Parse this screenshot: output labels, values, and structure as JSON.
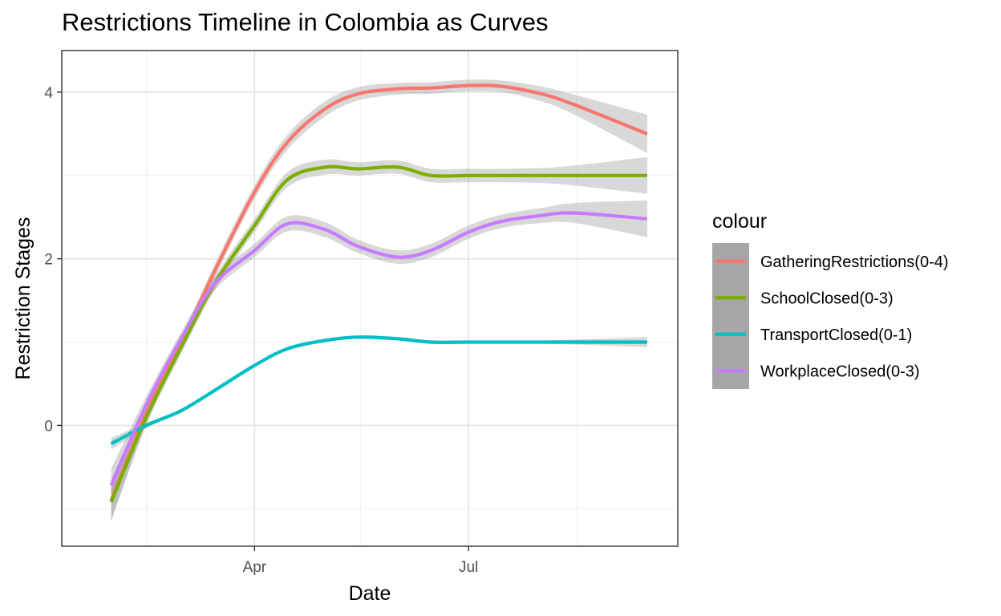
{
  "title": "Restrictions Timeline in Colombia as Curves",
  "chart_data": {
    "type": "line",
    "title": "Restrictions Timeline in Colombia as Curves",
    "xlabel": "Date",
    "ylabel": "Restriction Stages",
    "x_ticks": [
      {
        "date": "2020-04-01",
        "label": "Apr"
      },
      {
        "date": "2020-07-01",
        "label": "Jul"
      }
    ],
    "x_minor_ticks": [
      "2020-02-15",
      "2020-05-16",
      "2020-08-16"
    ],
    "y_ticks": [
      0,
      2,
      4
    ],
    "y_minor_ticks": [
      -1,
      1,
      3
    ],
    "xlim": [
      "2020-01-10",
      "2020-09-28"
    ],
    "ylim": [
      -1.45,
      4.5
    ],
    "grid": true,
    "smoothed_with_ci": true,
    "legend": {
      "title": "colour",
      "position": "right"
    },
    "series": [
      {
        "name": "GatheringRestrictions(0-4)",
        "color": "#F8766D",
        "x": [
          "2020-01-31",
          "2020-02-15",
          "2020-03-01",
          "2020-03-15",
          "2020-04-01",
          "2020-04-15",
          "2020-05-01",
          "2020-05-15",
          "2020-06-01",
          "2020-06-15",
          "2020-07-01",
          "2020-07-15",
          "2020-08-01",
          "2020-08-15",
          "2020-09-15"
        ],
        "y": [
          -0.9,
          0.15,
          1.0,
          1.85,
          2.8,
          3.4,
          3.8,
          3.98,
          4.04,
          4.05,
          4.08,
          4.07,
          3.98,
          3.85,
          3.5
        ],
        "ci_halfwidth": [
          0.25,
          0.12,
          0.08,
          0.08,
          0.08,
          0.09,
          0.09,
          0.08,
          0.07,
          0.07,
          0.07,
          0.07,
          0.09,
          0.12,
          0.23
        ]
      },
      {
        "name": "SchoolClosed(0-3)",
        "color": "#7CAE00",
        "x": [
          "2020-01-31",
          "2020-02-15",
          "2020-03-01",
          "2020-03-15",
          "2020-04-01",
          "2020-04-15",
          "2020-05-01",
          "2020-05-15",
          "2020-06-01",
          "2020-06-15",
          "2020-07-01",
          "2020-07-15",
          "2020-08-01",
          "2020-08-15",
          "2020-09-15"
        ],
        "y": [
          -0.92,
          0.1,
          0.95,
          1.7,
          2.4,
          2.95,
          3.1,
          3.08,
          3.1,
          3.0,
          3.0,
          3.0,
          3.0,
          3.0,
          3.0
        ],
        "ci_halfwidth": [
          0.22,
          0.1,
          0.08,
          0.08,
          0.08,
          0.09,
          0.09,
          0.08,
          0.08,
          0.08,
          0.08,
          0.08,
          0.09,
          0.12,
          0.22
        ]
      },
      {
        "name": "TransportClosed(0-1)",
        "color": "#00BFC4",
        "x": [
          "2020-01-31",
          "2020-02-15",
          "2020-03-01",
          "2020-03-15",
          "2020-04-01",
          "2020-04-15",
          "2020-05-01",
          "2020-05-15",
          "2020-06-01",
          "2020-06-15",
          "2020-07-01",
          "2020-07-15",
          "2020-08-01",
          "2020-08-15",
          "2020-09-15"
        ],
        "y": [
          -0.22,
          0.0,
          0.18,
          0.42,
          0.72,
          0.92,
          1.02,
          1.06,
          1.04,
          1.0,
          1.0,
          1.0,
          1.0,
          1.0,
          1.0
        ],
        "ci_halfwidth": [
          0.07,
          0.03,
          0.02,
          0.02,
          0.02,
          0.02,
          0.02,
          0.02,
          0.02,
          0.02,
          0.02,
          0.02,
          0.02,
          0.03,
          0.06
        ]
      },
      {
        "name": "WorkplaceClosed(0-3)",
        "color": "#C77CFF",
        "x": [
          "2020-01-31",
          "2020-02-15",
          "2020-03-01",
          "2020-03-15",
          "2020-04-01",
          "2020-04-15",
          "2020-05-01",
          "2020-05-15",
          "2020-06-01",
          "2020-06-15",
          "2020-07-01",
          "2020-07-15",
          "2020-08-01",
          "2020-08-15",
          "2020-09-15"
        ],
        "y": [
          -0.72,
          0.25,
          1.05,
          1.7,
          2.1,
          2.42,
          2.35,
          2.15,
          2.02,
          2.1,
          2.32,
          2.45,
          2.52,
          2.55,
          2.48
        ],
        "ci_halfwidth": [
          0.2,
          0.1,
          0.08,
          0.08,
          0.08,
          0.09,
          0.09,
          0.08,
          0.08,
          0.08,
          0.08,
          0.08,
          0.09,
          0.12,
          0.22
        ]
      }
    ]
  }
}
